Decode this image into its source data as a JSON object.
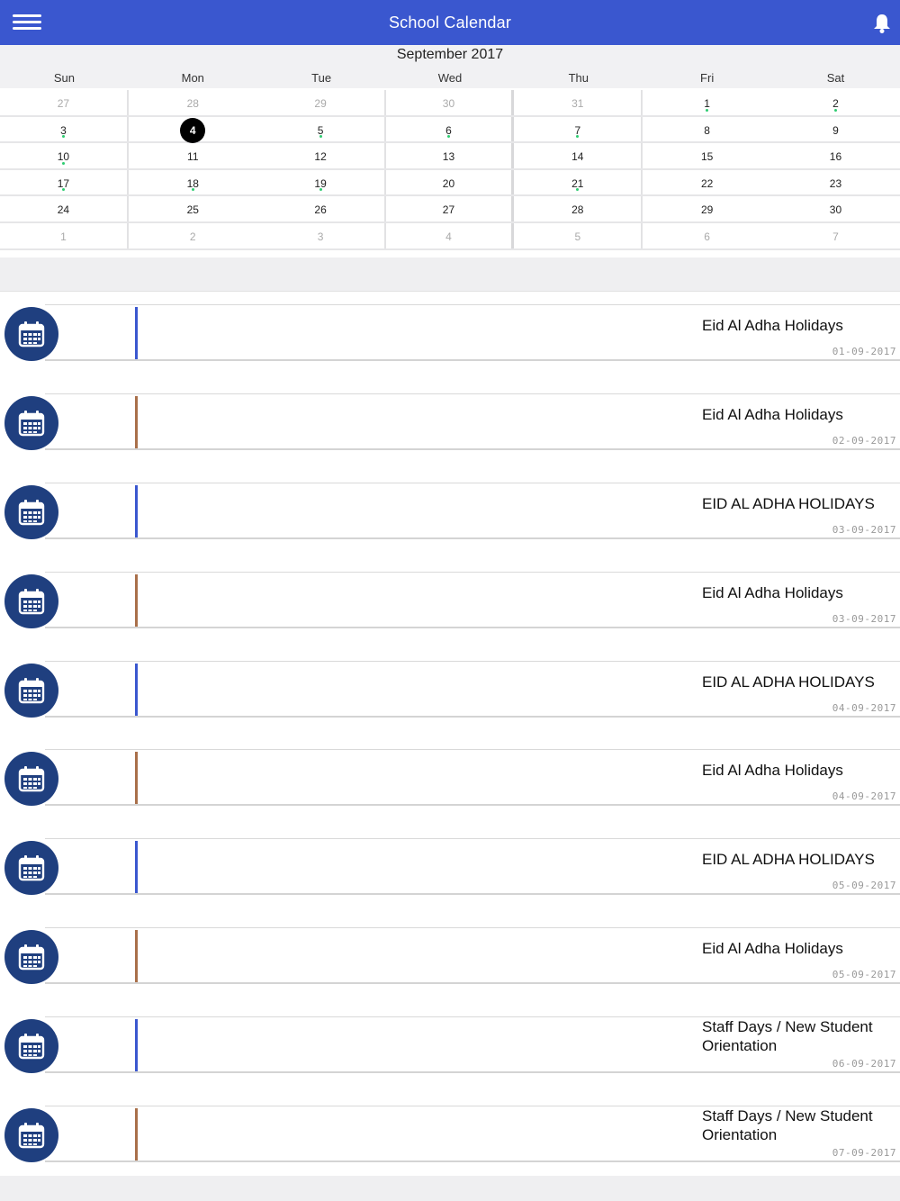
{
  "header": {
    "title": "School Calendar",
    "menu_icon": "hamburger-menu-icon",
    "bell_icon": "bell-icon"
  },
  "calendar": {
    "month_title": "September 2017",
    "weekdays": [
      "Sun",
      "Mon",
      "Tue",
      "Wed",
      "Thu",
      "Fri",
      "Sat"
    ],
    "selected_day": "4",
    "event_dot_color": "#2ecc71",
    "rows": [
      [
        {
          "d": "27",
          "other": true
        },
        {
          "d": "28",
          "other": true
        },
        {
          "d": "29",
          "other": true
        },
        {
          "d": "30",
          "other": true
        },
        {
          "d": "31",
          "other": true
        },
        {
          "d": "1",
          "dot": true
        },
        {
          "d": "2",
          "dot": true
        }
      ],
      [
        {
          "d": "3",
          "dot": true
        },
        {
          "d": "4",
          "selected": true
        },
        {
          "d": "5",
          "dot": true
        },
        {
          "d": "6",
          "dot": true
        },
        {
          "d": "7",
          "dot": true
        },
        {
          "d": "8"
        },
        {
          "d": "9"
        }
      ],
      [
        {
          "d": "10",
          "dot": true
        },
        {
          "d": "11"
        },
        {
          "d": "12"
        },
        {
          "d": "13"
        },
        {
          "d": "14"
        },
        {
          "d": "15"
        },
        {
          "d": "16"
        }
      ],
      [
        {
          "d": "17",
          "dot": true
        },
        {
          "d": "18",
          "dot": true
        },
        {
          "d": "19",
          "dot": true
        },
        {
          "d": "20"
        },
        {
          "d": "21",
          "dot": true
        },
        {
          "d": "22"
        },
        {
          "d": "23"
        }
      ],
      [
        {
          "d": "24"
        },
        {
          "d": "25"
        },
        {
          "d": "26"
        },
        {
          "d": "27"
        },
        {
          "d": "28"
        },
        {
          "d": "29"
        },
        {
          "d": "30"
        }
      ],
      [
        {
          "d": "1",
          "other": true
        },
        {
          "d": "2",
          "other": true
        },
        {
          "d": "3",
          "other": true
        },
        {
          "d": "4",
          "other": true
        },
        {
          "d": "5",
          "other": true
        },
        {
          "d": "6",
          "other": true
        },
        {
          "d": "7",
          "other": true
        }
      ]
    ]
  },
  "events": [
    {
      "title": "Eid Al Adha Holidays",
      "date": "01-09-2017",
      "color": "#3a57cf"
    },
    {
      "title": "Eid Al Adha Holidays",
      "date": "02-09-2017",
      "color": "#a9704a"
    },
    {
      "title": "EID AL ADHA HOLIDAYS",
      "date": "03-09-2017",
      "color": "#3a57cf"
    },
    {
      "title": "Eid Al Adha Holidays",
      "date": "03-09-2017",
      "color": "#a9704a"
    },
    {
      "title": "EID AL ADHA HOLIDAYS",
      "date": "04-09-2017",
      "color": "#3a57cf"
    },
    {
      "title": "Eid Al Adha Holidays",
      "date": "04-09-2017",
      "color": "#a9704a"
    },
    {
      "title": "EID AL ADHA HOLIDAYS",
      "date": "05-09-2017",
      "color": "#3a57cf"
    },
    {
      "title": "Eid Al Adha Holidays",
      "date": "05-09-2017",
      "color": "#a9704a"
    },
    {
      "title": "Staff Days / New Student Orientation",
      "date": "06-09-2017",
      "color": "#3a57cf"
    },
    {
      "title": "Staff Days / New Student Orientation",
      "date": "07-09-2017",
      "color": "#a9704a"
    }
  ],
  "event_icon": "calendar-icon"
}
